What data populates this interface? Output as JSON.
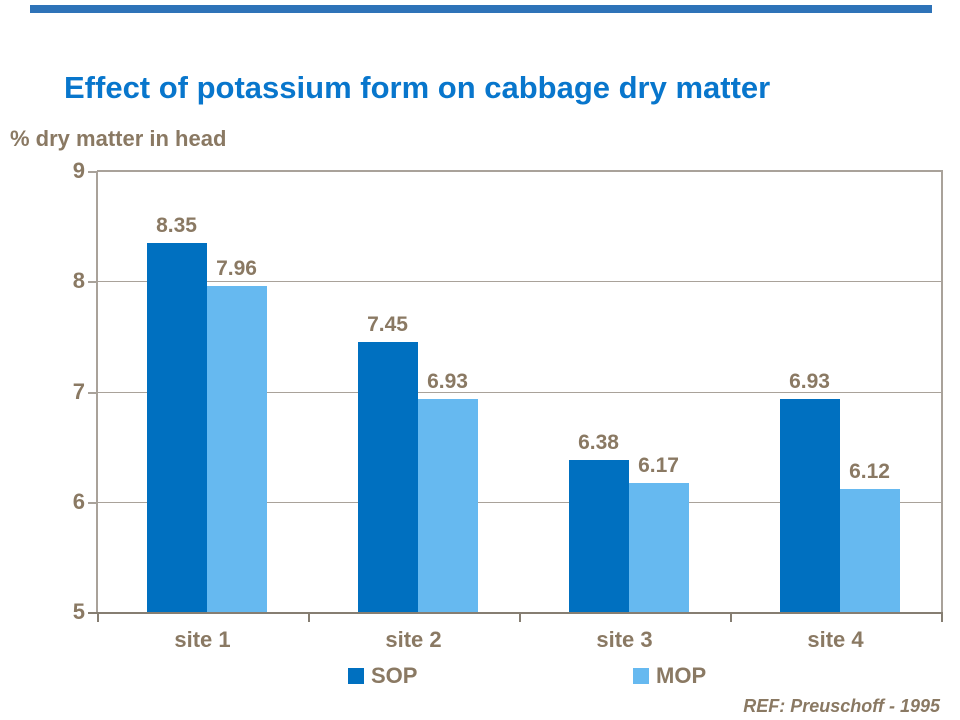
{
  "title": "Effect of potassium form on cabbage dry matter",
  "chart_data": {
    "type": "bar",
    "title": "Effect of potassium form on cabbage dry matter",
    "ylabel": "% dry matter in head",
    "xlabel": "",
    "categories": [
      "site 1",
      "site 2",
      "site 3",
      "site 4"
    ],
    "series": [
      {
        "name": "SOP",
        "color": "#0070C0",
        "values": [
          8.35,
          7.45,
          6.38,
          6.93
        ]
      },
      {
        "name": "MOP",
        "color": "#66B9F0",
        "values": [
          7.96,
          6.93,
          6.17,
          6.12
        ]
      }
    ],
    "ylim": [
      5,
      9
    ],
    "yticks": [
      5,
      6,
      7,
      8,
      9
    ],
    "grid": true,
    "value_labels": true,
    "legend_position": "bottom"
  },
  "footer": {
    "ref": "REF: Preuschoff - 1995"
  },
  "colors": {
    "title_blue": "#0876CC",
    "sop_blue": "#0070C0",
    "mop_blue": "#66B9F0",
    "label_brown": "#8A7963",
    "grid_gray": "#A9A29A",
    "axis_dark": "#867E72",
    "accent_bar_blue": "#2E73B8"
  }
}
